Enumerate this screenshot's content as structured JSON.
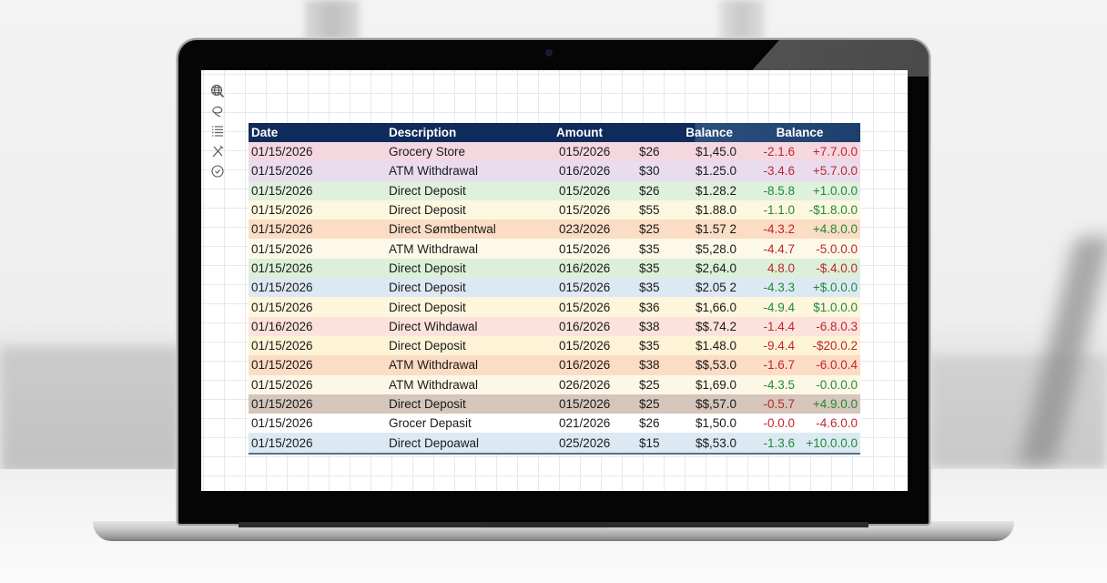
{
  "toolbar": {
    "tools": [
      {
        "icon": "globe-search-icon",
        "label": "Web"
      },
      {
        "icon": "lasso-icon",
        "label": "Lasso"
      },
      {
        "icon": "list-icon",
        "label": "List"
      },
      {
        "icon": "tools-icon",
        "label": "Tools"
      },
      {
        "icon": "clock-check-icon",
        "label": "History"
      }
    ]
  },
  "table": {
    "headers": {
      "date": "Date",
      "description": "Description",
      "amount": "Amount",
      "balance1": "Balance",
      "balance2": "Balance"
    },
    "colors": {
      "header_bg": "#0f2b5c",
      "negative": "#c0262d",
      "positive": "#1f8a3a"
    },
    "rows": [
      {
        "date": "01/15/2026",
        "desc": "Grocery Store",
        "ref": "015/2026",
        "amt": "$26",
        "bal": "$1,45.0",
        "chg": "-2.1.6",
        "chg_tone": "neg",
        "tot": "+7.7.0.0",
        "tot_tone": "neg",
        "bg": "#f5d7e0"
      },
      {
        "date": "01/15/2026",
        "desc": "ATM Withdrawal",
        "ref": "016/2026",
        "amt": "$30",
        "bal": "$1.25.0",
        "chg": "-3.4.6",
        "chg_tone": "neg",
        "tot": "+5.7.0.0",
        "tot_tone": "neg",
        "bg": "#e8dcee"
      },
      {
        "date": "01/15/2026",
        "desc": "Direct Deposit",
        "ref": "015/2026",
        "amt": "$26",
        "bal": "$1.28.2",
        "chg": "-8.5.8",
        "chg_tone": "pos",
        "tot": "+1.0.0.0",
        "tot_tone": "pos",
        "bg": "#dff0dc"
      },
      {
        "date": "01/15/2026",
        "desc": "Direct Deposit",
        "ref": "015/2026",
        "amt": "$55",
        "bal": "$1.88.0",
        "chg": "-1.1.0",
        "chg_tone": "pos",
        "tot": "-$1.8.0.0",
        "tot_tone": "pos",
        "bg": "#fdf7df"
      },
      {
        "date": "01/15/2026",
        "desc": "Direct Sømtbentwal",
        "ref": "023/2026",
        "amt": "$25",
        "bal": "$1.57 2",
        "chg": "-4.3.2",
        "chg_tone": "neg",
        "tot": "+4.8.0.0",
        "tot_tone": "pos",
        "bg": "#fbdcc4"
      },
      {
        "date": "01/15/2026",
        "desc": "ATM Withdrawal",
        "ref": "015/2026",
        "amt": "$35",
        "bal": "$5,28.0",
        "chg": "-4.4.7",
        "chg_tone": "neg",
        "tot": "-5.0.0.0",
        "tot_tone": "neg",
        "bg": "#fdf9e8"
      },
      {
        "date": "01/15/2026",
        "desc": "Direct Deposit",
        "ref": "016/2026",
        "amt": "$35",
        "bal": "$2,64.0",
        "chg": "4.8.0",
        "chg_tone": "neg",
        "tot": "-$.4.0.0",
        "tot_tone": "neg",
        "bg": "#dcefd8"
      },
      {
        "date": "01/15/2026",
        "desc": "Direct Deposit",
        "ref": "015/2026",
        "amt": "$35",
        "bal": "$2.05 2",
        "chg": "-4.3.3",
        "chg_tone": "pos",
        "tot": "+$.0.0.0",
        "tot_tone": "pos",
        "bg": "#dde9f2"
      },
      {
        "date": "01/15/2026",
        "desc": "Direct Deposit",
        "ref": "015/2026",
        "amt": "$36",
        "bal": "$1,66.0",
        "chg": "-4.9.4",
        "chg_tone": "pos",
        "tot": "$1.0.0.0",
        "tot_tone": "pos",
        "bg": "#fdf5dc"
      },
      {
        "date": "01/16/2026",
        "desc": "Direct Wihdawal",
        "ref": "016/2026",
        "amt": "$38",
        "bal": "$$.74.2",
        "chg": "-1.4.4",
        "chg_tone": "neg",
        "tot": "-6.8.0.3",
        "tot_tone": "neg",
        "bg": "#fbe3dc"
      },
      {
        "date": "01/15/2026",
        "desc": "Direct Deposit",
        "ref": "015/2026",
        "amt": "$35",
        "bal": "$1.48.0",
        "chg": "-9.4.4",
        "chg_tone": "neg",
        "tot": "-$20.0.2",
        "tot_tone": "neg",
        "bg": "#fdf3d6"
      },
      {
        "date": "01/15/2026",
        "desc": "ATM Withdrawal",
        "ref": "016/2026",
        "amt": "$38",
        "bal": "$$,53.0",
        "chg": "-1.6.7",
        "chg_tone": "neg",
        "tot": "-6.0.0.4",
        "tot_tone": "neg",
        "bg": "#fbdcc4"
      },
      {
        "date": "01/15/2026",
        "desc": "ATM Withdrawal",
        "ref": "026/2026",
        "amt": "$25",
        "bal": "$1,69.0",
        "chg": "-4.3.5",
        "chg_tone": "pos",
        "tot": "-0.0.0.0",
        "tot_tone": "pos",
        "bg": "#fdf8e6"
      },
      {
        "date": "01/15/2026",
        "desc": "Direct Deposit",
        "ref": "015/2026",
        "amt": "$25",
        "bal": "$$,57.0",
        "chg": "-0.5.7",
        "chg_tone": "neg",
        "tot": "+4.9.0.0",
        "tot_tone": "pos",
        "bg": "#d5c5bb"
      },
      {
        "date": "01/15/2026",
        "desc": "Grocer Depasit",
        "ref": "021/2026",
        "amt": "$26",
        "bal": "$1,50.0",
        "chg": "-0.0.0",
        "chg_tone": "neg",
        "tot": "-4.6.0.0",
        "tot_tone": "neg",
        "bg": "#ffffff"
      },
      {
        "date": "01/15/2026",
        "desc": "Direct Depoawal",
        "ref": "025/2026",
        "amt": "$15",
        "bal": "$$,53.0",
        "chg": "-1.3.6",
        "chg_tone": "pos",
        "tot": "+10.0.0.0",
        "tot_tone": "pos",
        "bg": "#dde9f2"
      }
    ]
  }
}
